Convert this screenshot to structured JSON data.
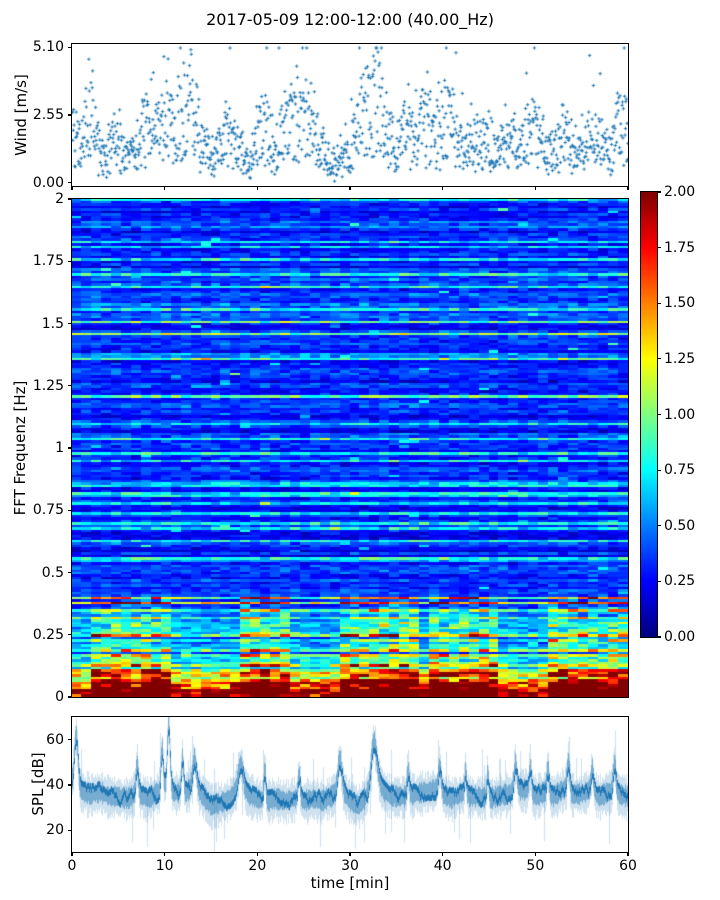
{
  "figure": {
    "title": "2017-05-09 12:00-12:00 (40.00_Hz)",
    "background": "#ffffff",
    "text_color": "#000000",
    "accent_color": "#1f77b4"
  },
  "chart_data": [
    {
      "id": "wind",
      "type": "scatter",
      "ylabel": "Wind [m/s]",
      "marker": "+",
      "color": "#1f77b4",
      "xlim": [
        0,
        60
      ],
      "ylim": [
        0,
        5.1
      ],
      "ytick_values": [
        0,
        2.55,
        5.1
      ],
      "ytick_labels": [
        "0.00",
        "2.55",
        "5.10"
      ],
      "xtick_values": [
        0,
        10,
        20,
        30,
        40,
        50,
        60
      ],
      "points_per_minute": 22,
      "seed": 42,
      "envelope_mean_per_min": [
        2.4,
        1.2,
        3.4,
        1.0,
        1.3,
        1.6,
        0.9,
        1.3,
        2.1,
        1.6,
        2.6,
        1.9,
        2.3,
        3.1,
        1.5,
        0.8,
        1.2,
        2.3,
        1.3,
        0.7,
        1.6,
        2.1,
        1.1,
        2.4,
        2.5,
        2.2,
        2.7,
        1.3,
        0.6,
        0.8,
        1.2,
        2.2,
        2.9,
        3.4,
        1.8,
        1.3,
        2.0,
        1.5,
        2.5,
        1.6,
        2.6,
        2.3,
        1.2,
        1.8,
        1.5,
        1.7,
        1.1,
        1.9,
        1.2,
        1.7,
        2.1,
        1.4,
        1.0,
        1.8,
        1.3,
        1.1,
        1.9,
        1.5,
        1.1,
        2.2,
        1.9
      ],
      "description": "Gusty wind speed scatter, 0-5.1 m/s, peaks near 5 around minutes 2, 13 and 33."
    },
    {
      "id": "spectrogram",
      "type": "heatmap",
      "ylabel": "FFT Frequenz [Hz]",
      "xlim": [
        0,
        60
      ],
      "ylim": [
        0,
        2
      ],
      "clim": [
        0,
        2
      ],
      "colormap": "jet",
      "ytick_values": [
        0,
        0.25,
        0.5,
        0.75,
        1,
        1.25,
        1.5,
        1.75,
        2
      ],
      "ytick_labels": [
        "0",
        "0.25",
        "0.5",
        "0.75",
        "1",
        "1.25",
        "1.5",
        "1.75",
        "2"
      ],
      "cols": 56,
      "rows": 200,
      "seed": 7,
      "hot_time_ranges_min": [
        [
          2.5,
          11
        ],
        [
          18,
          24
        ],
        [
          29,
          37
        ],
        [
          39,
          46
        ],
        [
          51,
          60
        ]
      ],
      "description": "FFT spectrogram: mostly blue (values 0.1-0.5) above 0.3 Hz with sparse cyan horizontal streak rows; energy increases below 0.3 Hz (green/yellow/orange); bottom band below ~0.05 Hz saturated dark red (~2.0); red patches strongest inside the hot time ranges."
    },
    {
      "id": "colorbar",
      "type": "colorbar",
      "colormap": "jet",
      "range": [
        0,
        2
      ],
      "tick_values": [
        0,
        0.25,
        0.5,
        0.75,
        1,
        1.25,
        1.5,
        1.75,
        2
      ],
      "tick_labels": [
        "0.00",
        "0.25",
        "0.50",
        "0.75",
        "1.00",
        "1.25",
        "1.50",
        "1.75",
        "2.00"
      ]
    },
    {
      "id": "spl",
      "type": "line",
      "ylabel": "SPL [dB]",
      "xlabel": "time [min]",
      "color": "#1f77b4",
      "xlim": [
        0,
        60
      ],
      "ylim_drawn": [
        10.5,
        70
      ],
      "ytick_values": [
        20,
        40,
        60
      ],
      "ytick_labels": [
        "20",
        "40",
        "60"
      ],
      "xtick_values": [
        0,
        10,
        20,
        30,
        40,
        50,
        60
      ],
      "xtick_labels": [
        "0",
        "10",
        "20",
        "30",
        "40",
        "50",
        "60"
      ],
      "seed": 99,
      "mean_per_min": [
        40,
        37,
        36,
        37,
        35,
        35,
        34,
        37,
        34,
        36,
        39,
        37,
        36,
        39,
        36,
        31,
        32,
        34,
        39,
        36,
        34,
        33,
        34,
        33,
        34,
        33,
        34,
        33,
        35,
        39,
        33,
        31,
        36,
        41,
        36,
        35,
        35,
        36,
        37,
        38,
        36,
        34,
        36,
        35,
        35,
        34,
        35,
        36,
        38,
        38,
        35,
        37,
        35,
        38,
        36,
        36,
        38,
        35,
        37,
        36,
        35
      ],
      "peaks": [
        {
          "min": 0.4,
          "db": 63,
          "sigma": 0.2
        },
        {
          "min": 7.0,
          "db": 50,
          "sigma": 0.12
        },
        {
          "min": 9.7,
          "db": 57,
          "sigma": 0.12
        },
        {
          "min": 10.4,
          "db": 68,
          "sigma": 0.15
        },
        {
          "min": 11.9,
          "db": 53,
          "sigma": 0.12
        },
        {
          "min": 13.2,
          "db": 52,
          "sigma": 0.2
        },
        {
          "min": 18.2,
          "db": 50,
          "sigma": 0.25
        },
        {
          "min": 20.8,
          "db": 48,
          "sigma": 0.1
        },
        {
          "min": 24.5,
          "db": 46,
          "sigma": 0.12
        },
        {
          "min": 28.9,
          "db": 52,
          "sigma": 0.2
        },
        {
          "min": 32.6,
          "db": 60,
          "sigma": 0.3
        },
        {
          "min": 36.3,
          "db": 47,
          "sigma": 0.12
        },
        {
          "min": 39.7,
          "db": 49,
          "sigma": 0.15
        },
        {
          "min": 42.5,
          "db": 47,
          "sigma": 0.1
        },
        {
          "min": 44.9,
          "db": 46,
          "sigma": 0.1
        },
        {
          "min": 47.9,
          "db": 50,
          "sigma": 0.15
        },
        {
          "min": 49.5,
          "db": 49,
          "sigma": 0.12
        },
        {
          "min": 51.4,
          "db": 48,
          "sigma": 0.12
        },
        {
          "min": 53.6,
          "db": 51,
          "sigma": 0.15
        },
        {
          "min": 56.2,
          "db": 48,
          "sigma": 0.12
        },
        {
          "min": 58.6,
          "db": 50,
          "sigma": 0.15
        }
      ],
      "description": "Dense noisy SPL band around 30-42 dB with light fringes and sharp spikes; largest spikes ~63-68 dB near minutes 0.4, 10.4 and 32.6."
    }
  ]
}
